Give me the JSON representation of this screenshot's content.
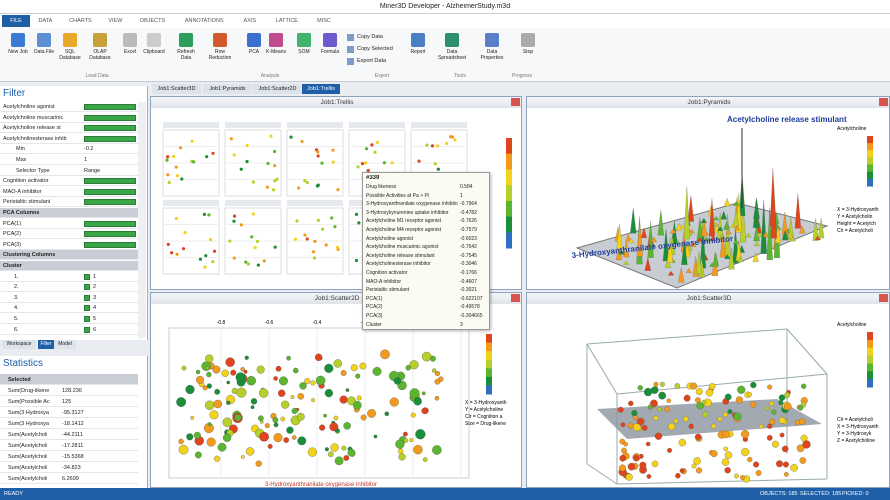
{
  "window": {
    "title": "Miner3D Developer - AlzheimerStudy.m3d"
  },
  "tabs": [
    "FILE",
    "DATA",
    "CHARTS",
    "VIEW",
    "OBJECTS",
    "ANNOTATIONS",
    "AXIS",
    "LATTICE",
    "MISC"
  ],
  "ribbon": {
    "buttons": [
      "New Job",
      "Data File",
      "SQL Database",
      "OLAP Database",
      "Excel",
      "Clipboard",
      "Refresh Data",
      "Row Reduction",
      "PCA",
      "K-Means",
      "SOM",
      "Formula",
      "Report",
      "Data Spreadsheet",
      "Data Properties",
      "Stop"
    ],
    "small_buttons": [
      "Copy Data",
      "Copy Selected",
      "Export Data"
    ],
    "groups": [
      "Load Data",
      "Analysis",
      "Export",
      "Tools",
      "Progress"
    ]
  },
  "doc_tabs": [
    "Job1:Scatter3D",
    "Job1:Pyramids",
    "Job1:Scatter2D",
    "Job1:Trellis"
  ],
  "filter": {
    "title": "Filter",
    "rows": [
      {
        "label": "Acetylcholine agonist",
        "kind": "bar"
      },
      {
        "label": "Acetylcholine muscarinic",
        "kind": "bar"
      },
      {
        "label": "Acetylcholine release st",
        "kind": "bar"
      },
      {
        "label": "Acetylcholinesterase inhib",
        "kind": "bar"
      },
      {
        "label": "Min",
        "value": "-0.2",
        "kind": "sub"
      },
      {
        "label": "Max",
        "value": "1",
        "kind": "sub"
      },
      {
        "label": "Selector Type",
        "value": "Range",
        "kind": "sub"
      },
      {
        "label": "Cognition activator",
        "kind": "bar"
      },
      {
        "label": "MAO-A inhibitor",
        "kind": "bar"
      },
      {
        "label": "Peristaltic stimulant",
        "kind": "bar"
      },
      {
        "label": "PCA Columns",
        "kind": "head"
      },
      {
        "label": "PCA(1)",
        "kind": "bar"
      },
      {
        "label": "PCA(2)",
        "kind": "bar"
      },
      {
        "label": "PCA(3)",
        "kind": "bar"
      },
      {
        "label": "Clustering Columns",
        "kind": "head"
      },
      {
        "label": "Cluster",
        "kind": "head"
      },
      {
        "label": "1.",
        "value": "1",
        "kind": "check"
      },
      {
        "label": "2.",
        "value": "2",
        "kind": "check"
      },
      {
        "label": "3.",
        "value": "3",
        "kind": "check"
      },
      {
        "label": "4.",
        "value": "4",
        "kind": "check"
      },
      {
        "label": "5.",
        "value": "5",
        "kind": "check"
      },
      {
        "label": "6.",
        "value": "6",
        "kind": "check"
      }
    ]
  },
  "panel_tabs": [
    "Workspace",
    "Filter",
    "Model"
  ],
  "statistics": {
    "title": "Statistics",
    "rows": [
      {
        "label": "Selected"
      },
      {
        "label": "Sum(Drug-likene",
        "value": "128.236"
      },
      {
        "label": "Sum(Possible Ac",
        "value": "125"
      },
      {
        "label": "Sum(3 Hydroxya",
        "value": "-95.3127"
      },
      {
        "label": "Sum(3 Hydroxya",
        "value": "-18.1412"
      },
      {
        "label": "Sum(Acetylcholi",
        "value": "-44.2111"
      },
      {
        "label": "Sum(Acetylcholi",
        "value": "-17.2811"
      },
      {
        "label": "Sum(Acetylcholi",
        "value": "-15.5368"
      },
      {
        "label": "Sum(Acetylcholi",
        "value": "-34.823"
      },
      {
        "label": "Sum(Acetylcholi",
        "value": "6.2699"
      }
    ]
  },
  "panes": {
    "trellis": "Job1:Trellis",
    "pyramids": "Job1:Pyramids",
    "scatter2d": "Job1:Scatter2D",
    "scatter3d": "Job1:Scatter3D"
  },
  "pyramids": {
    "title": "Acetylcholine release stimulant",
    "axis": "3-Hydroxyanthranilate oxygenase inhibitor",
    "legend": [
      "Acetylcholine",
      "X = 3-Hydroxyanth",
      "Y = Acetylcholin",
      "Height = Acetylch",
      "Clr = Acetylcholi"
    ]
  },
  "scatter2d": {
    "xticks": [
      "-0.8",
      "-0.6",
      "-0.4",
      "-0.2",
      "0",
      "0.2"
    ],
    "axis": "3-Hydroxyanthranilate oxygenase inhibitor",
    "legend": [
      "X = 3-Hydroxyanth",
      "Y = Acetylcholine",
      "Clr = Cognition a",
      "Size = Drug-likene"
    ]
  },
  "scatter3d": {
    "legend": [
      "Acetylcholine",
      "Clr = Acetylcholi",
      "X = 3-Hydroxyanth",
      "Y = 3-Hydroxyk",
      "Z = Acetylcholine"
    ]
  },
  "tooltip": {
    "title": "#339",
    "rows": [
      [
        "Drug likeness",
        "0.584"
      ],
      [
        "Possible Activities at Pa > Pi",
        "1"
      ],
      [
        "3-Hydroxyanthranilate oxygenase inhibitor",
        "-0.7964"
      ],
      [
        "3-Hydroxykynurenine uptake inhibitor",
        "-0.4782"
      ],
      [
        "Acetylcholine M1 receptor agonist",
        "-0.7626"
      ],
      [
        "Acetylcholine M4 receptor agonist",
        "-0.7579"
      ],
      [
        "Acetylcholine agonist",
        "-0.6023"
      ],
      [
        "Acetylcholine muscarinic agonist",
        "-0.7642"
      ],
      [
        "Acetylcholine release stimulant",
        "-0.7545"
      ],
      [
        "Acetylcholinesterase inhibitor",
        "-0.3046"
      ],
      [
        "Cognition activator",
        "-0.1766"
      ],
      [
        "MAO-A inhibitor",
        "-0.4607"
      ],
      [
        "Peristaltic stimulant",
        "-0.3021"
      ],
      [
        "PCA(1)",
        "-0.622107"
      ],
      [
        "PCA(2)",
        "-0.49578"
      ],
      [
        "PCA(3)",
        "-0.304665"
      ],
      [
        "Cluster",
        "3"
      ]
    ]
  },
  "status": [
    "READY",
    "OBJECTS: 185",
    "SELECTED: 185",
    "PICKED: 0"
  ]
}
